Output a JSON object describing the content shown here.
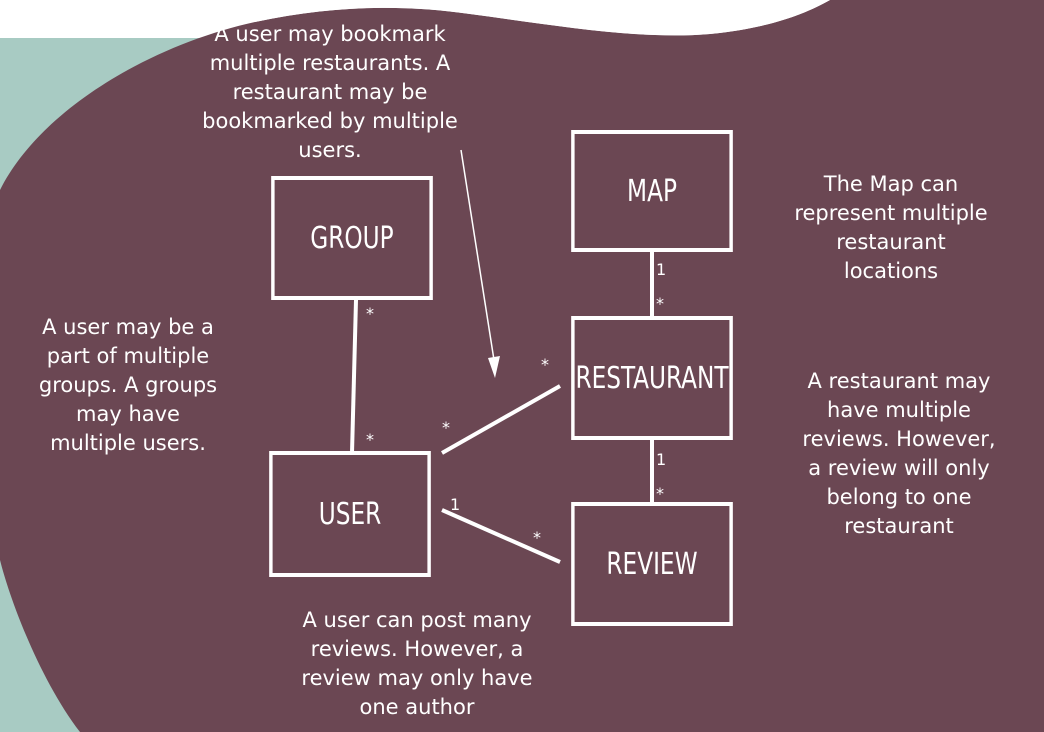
{
  "colors": {
    "background": "#ffffff",
    "teal": "#a8cbc3",
    "plum": "#6b4753",
    "foreground": "#ffffff"
  },
  "entities": {
    "group": "GROUP",
    "map": "MAP",
    "restaurant": "RESTAURANT",
    "user": "USER",
    "review": "REVIEW"
  },
  "notes": {
    "bookmark": "A user may bookmark\nmultiple restaurants. A\nrestaurant may be\nbookmarked by multiple\nusers.",
    "map": "The Map can\nrepresent multiple\nrestaurant\nlocations",
    "group": "A user may be a\npart of multiple\ngroups. A groups\nmay have\nmultiple users.",
    "review": "A restaurant may\nhave multiple\nreviews. However,\na review will only\nbelong to one\nrestaurant",
    "author": "A user can post many\nreviews. However, a\nreview may only have\none author"
  },
  "relationships": {
    "group_user": {
      "group_end": "*",
      "user_end": "*"
    },
    "user_restaurant": {
      "user_end": "*",
      "restaurant_end": "*"
    },
    "map_restaurant": {
      "map_end": "1",
      "restaurant_end": "*"
    },
    "restaurant_review": {
      "restaurant_end": "1",
      "review_end": "*"
    },
    "user_review": {
      "user_end": "1",
      "review_end": "*"
    }
  }
}
